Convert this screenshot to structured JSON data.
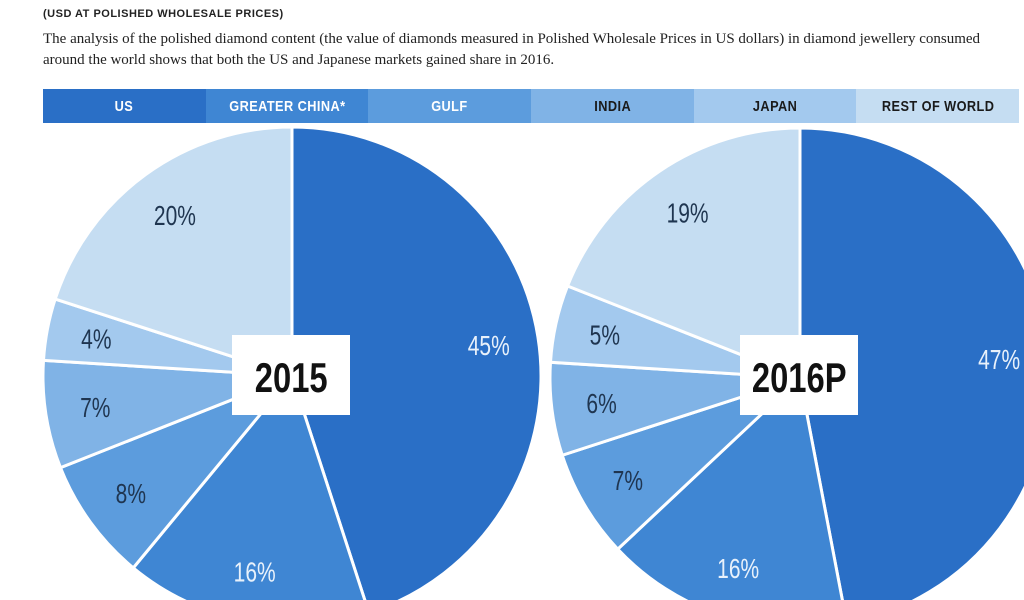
{
  "subtitle": "(USD AT POLISHED WHOLESALE PRICES)",
  "description": "The analysis of the polished diamond content (the value of diamonds measured in Polished Wholesale Prices in US dollars) in diamond jewellery consumed around the world shows that both the US and Japanese markets gained share in 2016.",
  "legend": [
    {
      "label": "US",
      "color": "#2a6fc6",
      "text_color": "#ffffff"
    },
    {
      "label": "GREATER CHINA*",
      "color": "#3f86d3",
      "text_color": "#ffffff"
    },
    {
      "label": "GULF",
      "color": "#5c9cdd",
      "text_color": "#ffffff"
    },
    {
      "label": "INDIA",
      "color": "#80b3e6",
      "text_color": "#1a1a1a"
    },
    {
      "label": "JAPAN",
      "color": "#a3c9ee",
      "text_color": "#1a1a1a"
    },
    {
      "label": "REST OF WORLD",
      "color": "#c5ddf2",
      "text_color": "#1a1a1a"
    }
  ],
  "chart_data": [
    {
      "type": "pie",
      "title": "2015",
      "categories": [
        "US",
        "GREATER CHINA*",
        "GULF",
        "INDIA",
        "JAPAN",
        "REST OF WORLD"
      ],
      "values": [
        45,
        16,
        8,
        7,
        4,
        20
      ],
      "labels": [
        "45%",
        "16%",
        "8%",
        "7%",
        "4%",
        "20%"
      ]
    },
    {
      "type": "pie",
      "title": "2016P",
      "categories": [
        "US",
        "GREATER CHINA*",
        "GULF",
        "INDIA",
        "JAPAN",
        "REST OF WORLD"
      ],
      "values": [
        47,
        16,
        7,
        6,
        5,
        19
      ],
      "labels": [
        "47%",
        "16%",
        "7%",
        "6%",
        "5%",
        "19%"
      ]
    }
  ]
}
